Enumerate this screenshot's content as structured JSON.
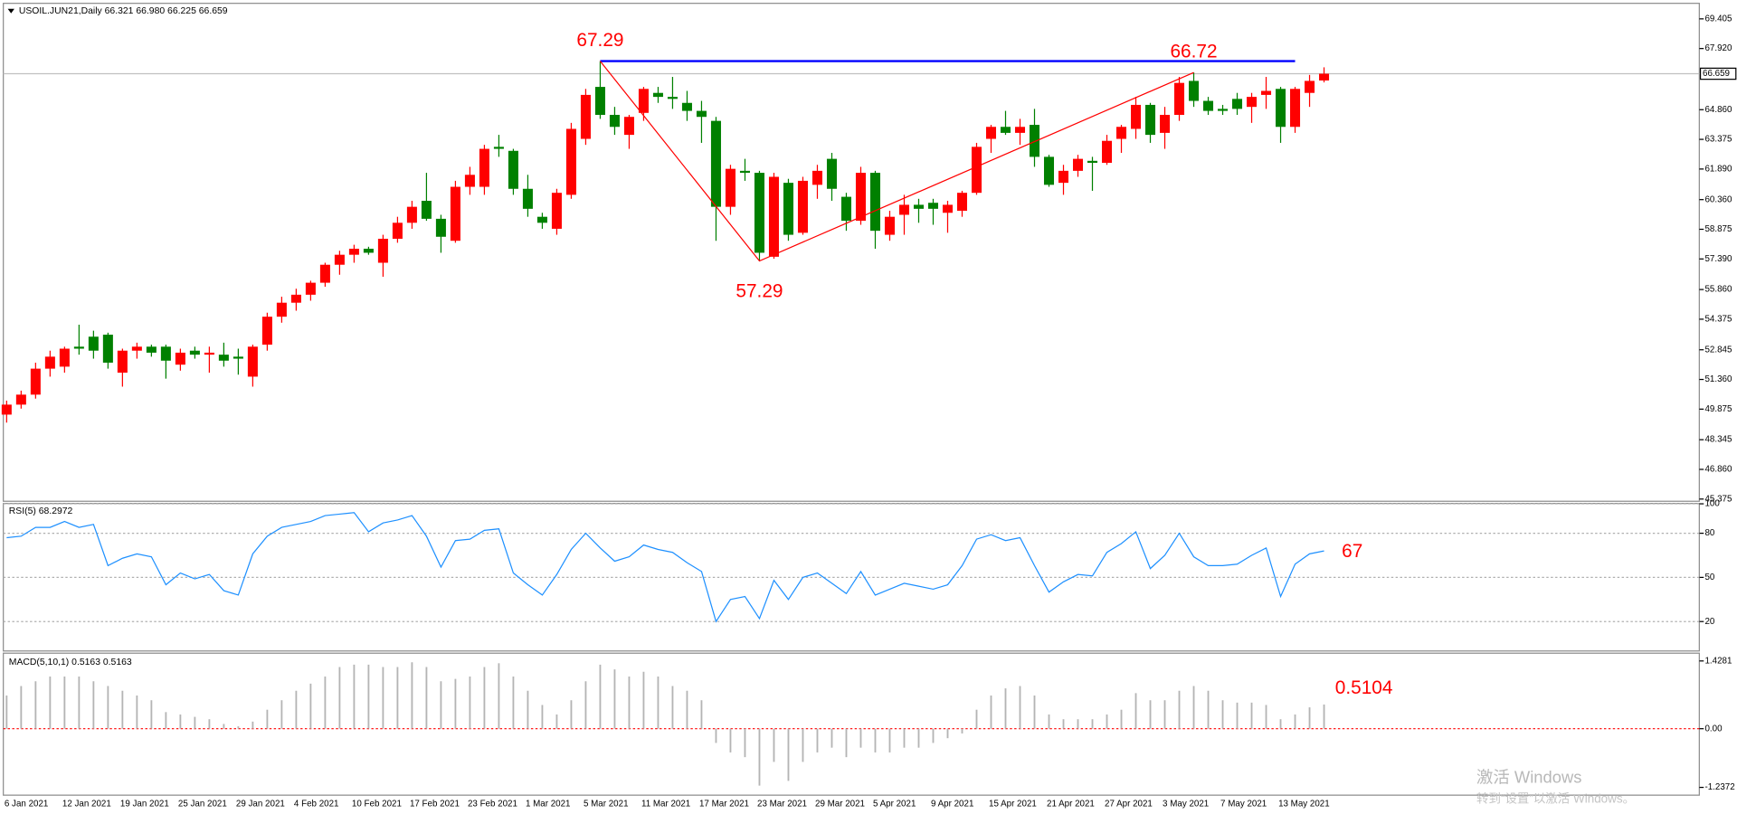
{
  "header": "USOIL.JUN21,Daily 66.321 66.980 66.225 66.659",
  "chart_data": [
    {
      "type": "candlestick",
      "categories": [
        "6 Jan 2021",
        null,
        null,
        null,
        "12 Jan 2021",
        null,
        null,
        null,
        "19 Jan 2021",
        null,
        null,
        null,
        "25 Jan 2021",
        null,
        null,
        null,
        "29 Jan 2021",
        null,
        null,
        null,
        "4 Feb 2021",
        null,
        null,
        null,
        "10 Feb 2021",
        null,
        null,
        null,
        "17 Feb 2021",
        null,
        null,
        null,
        "23 Feb 2021",
        null,
        null,
        null,
        "1 Mar 2021",
        null,
        null,
        null,
        "5 Mar 2021",
        null,
        null,
        null,
        "11 Mar 2021",
        null,
        null,
        null,
        "17 Mar 2021",
        null,
        null,
        null,
        "23 Mar 2021",
        null,
        null,
        null,
        "29 Mar 2021",
        null,
        null,
        null,
        "5 Apr 2021",
        null,
        null,
        null,
        "9 Apr 2021",
        null,
        null,
        null,
        "15 Apr 2021",
        null,
        null,
        null,
        "21 Apr 2021",
        null,
        null,
        null,
        "27 Apr 2021",
        null,
        null,
        null,
        "3 May 2021",
        null,
        null,
        null,
        "7 May 2021",
        null,
        null,
        null,
        "13 May 2021",
        null,
        null,
        null
      ],
      "ohlc": [
        [
          49.6,
          50.3,
          49.2,
          50.1
        ],
        [
          50.1,
          50.8,
          49.9,
          50.6
        ],
        [
          50.6,
          52.2,
          50.4,
          51.9
        ],
        [
          51.9,
          52.8,
          51.5,
          52.5
        ],
        [
          52.0,
          53.0,
          51.7,
          52.9
        ],
        [
          53.0,
          54.1,
          52.6,
          52.9
        ],
        [
          53.5,
          53.8,
          52.4,
          52.8
        ],
        [
          53.6,
          53.7,
          51.9,
          52.2
        ],
        [
          51.7,
          52.9,
          51.0,
          52.8
        ],
        [
          52.8,
          53.2,
          52.4,
          53.0
        ],
        [
          53.0,
          53.1,
          52.5,
          52.7
        ],
        [
          53.0,
          53.1,
          51.4,
          52.3
        ],
        [
          52.1,
          52.9,
          51.8,
          52.7
        ],
        [
          52.8,
          53.0,
          52.4,
          52.6
        ],
        [
          52.6,
          53.0,
          51.7,
          52.7
        ],
        [
          52.6,
          53.2,
          52.0,
          52.3
        ],
        [
          52.5,
          52.9,
          51.6,
          52.4
        ],
        [
          51.5,
          53.1,
          51.0,
          53.0
        ],
        [
          53.1,
          54.7,
          52.8,
          54.5
        ],
        [
          54.5,
          55.5,
          54.2,
          55.2
        ],
        [
          55.2,
          55.9,
          54.8,
          55.6
        ],
        [
          55.6,
          56.3,
          55.3,
          56.2
        ],
        [
          56.2,
          57.2,
          56.0,
          57.1
        ],
        [
          57.1,
          57.8,
          56.6,
          57.6
        ],
        [
          57.6,
          58.1,
          57.2,
          57.9
        ],
        [
          57.9,
          58.0,
          57.6,
          57.7
        ],
        [
          57.2,
          58.6,
          56.5,
          58.4
        ],
        [
          58.4,
          59.5,
          58.2,
          59.2
        ],
        [
          59.2,
          60.3,
          58.9,
          60.0
        ],
        [
          60.3,
          61.7,
          59.3,
          59.4
        ],
        [
          59.4,
          59.6,
          57.7,
          58.5
        ],
        [
          58.3,
          61.3,
          58.2,
          61.0
        ],
        [
          61.0,
          62.0,
          60.6,
          61.6
        ],
        [
          61.0,
          63.1,
          60.6,
          62.9
        ],
        [
          63.0,
          63.6,
          62.5,
          62.9
        ],
        [
          62.8,
          62.9,
          60.6,
          60.9
        ],
        [
          60.9,
          61.6,
          59.5,
          59.9
        ],
        [
          59.5,
          59.7,
          58.9,
          59.2
        ],
        [
          58.9,
          60.9,
          58.6,
          60.7
        ],
        [
          60.6,
          64.2,
          60.4,
          63.9
        ],
        [
          63.4,
          65.9,
          63.1,
          65.6
        ],
        [
          66.0,
          67.29,
          64.4,
          64.6
        ],
        [
          64.6,
          65.0,
          63.6,
          64.0
        ],
        [
          63.6,
          64.6,
          62.9,
          64.5
        ],
        [
          64.7,
          66.0,
          64.3,
          65.9
        ],
        [
          65.7,
          66.0,
          65.2,
          65.5
        ],
        [
          65.5,
          66.5,
          64.9,
          65.4
        ],
        [
          65.2,
          65.8,
          64.3,
          64.8
        ],
        [
          64.8,
          65.3,
          63.2,
          64.5
        ],
        [
          64.3,
          64.5,
          58.3,
          60.0
        ],
        [
          60.0,
          62.1,
          59.6,
          61.9
        ],
        [
          61.8,
          62.4,
          61.3,
          61.7
        ],
        [
          61.7,
          61.8,
          57.29,
          57.7
        ],
        [
          57.5,
          61.7,
          57.4,
          61.5
        ],
        [
          61.2,
          61.4,
          58.3,
          58.6
        ],
        [
          58.7,
          61.5,
          58.6,
          61.3
        ],
        [
          61.1,
          62.1,
          60.4,
          61.8
        ],
        [
          62.4,
          62.7,
          60.3,
          60.9
        ],
        [
          60.5,
          60.7,
          58.8,
          59.3
        ],
        [
          59.3,
          62.0,
          59.1,
          61.7
        ],
        [
          61.7,
          61.8,
          57.9,
          58.8
        ],
        [
          58.6,
          59.8,
          58.3,
          59.5
        ],
        [
          59.6,
          60.6,
          58.6,
          60.1
        ],
        [
          60.1,
          60.4,
          59.2,
          59.9
        ],
        [
          60.2,
          60.4,
          59.1,
          59.9
        ],
        [
          59.7,
          60.3,
          58.7,
          60.1
        ],
        [
          59.8,
          60.8,
          59.5,
          60.7
        ],
        [
          60.7,
          63.2,
          60.6,
          63.0
        ],
        [
          63.4,
          64.1,
          62.7,
          64.0
        ],
        [
          64.0,
          64.8,
          63.6,
          63.7
        ],
        [
          63.7,
          64.4,
          63.1,
          64.0
        ],
        [
          64.1,
          64.9,
          62.0,
          62.5
        ],
        [
          62.5,
          62.6,
          61.0,
          61.1
        ],
        [
          61.2,
          62.1,
          60.6,
          61.8
        ],
        [
          61.8,
          62.6,
          61.5,
          62.4
        ],
        [
          62.3,
          62.5,
          60.8,
          62.2
        ],
        [
          62.2,
          63.6,
          62.1,
          63.3
        ],
        [
          63.4,
          64.1,
          62.7,
          64.0
        ],
        [
          63.9,
          65.5,
          63.4,
          65.1
        ],
        [
          65.1,
          65.2,
          63.2,
          63.6
        ],
        [
          63.7,
          65.0,
          62.9,
          64.6
        ],
        [
          64.6,
          66.5,
          64.3,
          66.2
        ],
        [
          66.3,
          66.72,
          65.0,
          65.3
        ],
        [
          65.3,
          65.5,
          64.6,
          64.8
        ],
        [
          64.9,
          65.1,
          64.6,
          64.8
        ],
        [
          65.4,
          65.7,
          64.6,
          64.9
        ],
        [
          65.0,
          65.7,
          64.2,
          65.5
        ],
        [
          65.6,
          66.5,
          64.9,
          65.8
        ],
        [
          65.9,
          66.0,
          63.2,
          64.0
        ],
        [
          64.0,
          66.0,
          63.7,
          65.9
        ],
        [
          65.7,
          66.6,
          65.0,
          66.3
        ],
        [
          66.321,
          66.98,
          66.225,
          66.659
        ]
      ],
      "up_color": "#ff0000",
      "down_color": "#008000",
      "ylim": [
        45.375,
        69.405
      ],
      "yticks": [
        69.405,
        {
          "value": 67.92,
          "label": "67.920"
        },
        {
          "value": 64.86,
          "label": "64.860"
        },
        63.375,
        {
          "value": 61.89,
          "label": "61.890"
        },
        {
          "value": 60.36,
          "label": "60.360"
        },
        58.875,
        {
          "value": 57.39,
          "label": "57.390"
        },
        {
          "value": 55.86,
          "label": "55.860"
        },
        54.375,
        52.845,
        {
          "value": 51.36,
          "label": "51.360"
        },
        49.875,
        48.345,
        {
          "value": 46.86,
          "label": "46.860"
        },
        45.375
      ],
      "last_price": 66.659,
      "zigzag": {
        "color": "#ff0000",
        "points": [
          {
            "index": 41,
            "value": 67.29
          },
          {
            "index": 52,
            "value": 57.29
          },
          {
            "index": 82,
            "value": 66.72
          }
        ]
      },
      "level_line": {
        "color": "#0000ff",
        "value": 67.29,
        "start": 41,
        "end": 89
      }
    },
    {
      "type": "line",
      "title": "RSI(5) 68.2972",
      "color": "#1e90ff",
      "values": [
        77,
        78,
        84,
        84,
        88,
        84,
        86,
        58,
        63,
        66,
        64,
        45,
        53,
        49,
        52,
        41,
        38,
        66,
        78,
        84,
        86,
        88,
        92,
        93,
        94,
        81,
        87,
        89,
        92,
        78,
        57,
        75,
        76,
        82,
        83,
        53,
        45,
        38,
        52,
        69,
        80,
        70,
        61,
        64,
        72,
        69,
        67,
        60,
        54,
        20,
        35,
        37,
        22,
        48,
        35,
        50,
        53,
        46,
        39,
        54,
        38,
        42,
        46,
        44,
        42,
        45,
        58,
        76,
        79,
        75,
        77,
        58,
        40,
        47,
        52,
        51,
        67,
        73,
        81,
        56,
        65,
        80,
        64,
        58,
        58,
        59,
        65,
        70,
        37,
        59,
        66,
        68
      ],
      "ylim": [
        0,
        100
      ],
      "yticks": [
        20,
        50,
        80,
        100
      ],
      "grid": true,
      "annotation": 67
    },
    {
      "type": "bar",
      "title": "MACD(5,10,1) 0.5163 0.5163",
      "color": "#b4b4b4",
      "zero_color": "#ff0000",
      "values": [
        0.7,
        0.9,
        1.0,
        1.1,
        1.1,
        1.1,
        1.0,
        0.9,
        0.8,
        0.7,
        0.6,
        0.35,
        0.3,
        0.25,
        0.2,
        0.1,
        0.05,
        0.15,
        0.4,
        0.6,
        0.8,
        0.95,
        1.1,
        1.3,
        1.35,
        1.35,
        1.3,
        1.3,
        1.4,
        1.3,
        1.0,
        1.05,
        1.1,
        1.3,
        1.38,
        1.1,
        0.8,
        0.5,
        0.3,
        0.6,
        1.0,
        1.35,
        1.25,
        1.1,
        1.2,
        1.1,
        0.9,
        0.8,
        0.6,
        -0.3,
        -0.5,
        -0.6,
        -1.2,
        -0.7,
        -1.1,
        -0.7,
        -0.5,
        -0.4,
        -0.6,
        -0.4,
        -0.5,
        -0.5,
        -0.4,
        -0.4,
        -0.3,
        -0.2,
        -0.1,
        0.4,
        0.7,
        0.85,
        0.9,
        0.7,
        0.3,
        0.2,
        0.2,
        0.2,
        0.3,
        0.4,
        0.75,
        0.6,
        0.6,
        0.8,
        0.9,
        0.8,
        0.6,
        0.55,
        0.55,
        0.5,
        0.2,
        0.3,
        0.45,
        0.51
      ],
      "ylim": [
        -1.2372,
        1.4281
      ],
      "yticks": [
        -1.2372,
        {
          "value": 0,
          "label": "0.00"
        },
        1.4281
      ],
      "annotation": 0.5104
    }
  ],
  "watermark": {
    "title": "激活 Windows",
    "text": "转到“设置”以激活 Windows。"
  }
}
